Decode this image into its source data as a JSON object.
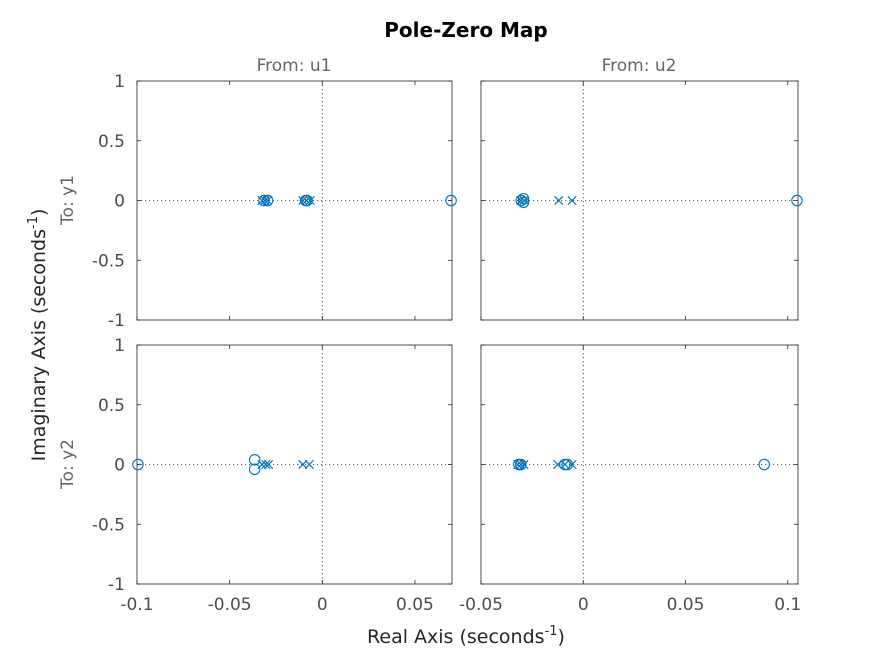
{
  "title": "Pole-Zero Map",
  "xlabel_main": "Real Axis (seconds",
  "xlabel_sup": "-1",
  "xlabel_close": ")",
  "ylabel_main": "Imaginary Axis (seconds",
  "ylabel_sup": "-1",
  "ylabel_close": ")",
  "column_labels": [
    "From: u1",
    "From: u2"
  ],
  "row_labels": [
    "To: y1",
    "To: y2"
  ],
  "colors": {
    "marker": "#0072bd",
    "axes": "#262626"
  },
  "chart_data": {
    "type": "scatter",
    "ylim": [
      -1,
      1
    ],
    "yticks": [
      1,
      0.5,
      0,
      -0.5,
      -1
    ],
    "ytick_labels": [
      "1",
      "0.5",
      "0",
      "-0.5",
      "-1"
    ],
    "columns": [
      {
        "xlim": [
          -0.1,
          0.07
        ],
        "xticks": [
          -0.1,
          -0.05,
          0,
          0.05
        ],
        "xtick_labels": [
          "-0.1",
          "-0.05",
          "0",
          "0.05"
        ]
      },
      {
        "xlim": [
          -0.05,
          0.105
        ],
        "xticks": [
          -0.05,
          0,
          0.05,
          0.1
        ],
        "xtick_labels": [
          "-0.05",
          "0",
          "0.05",
          "0.1"
        ]
      }
    ],
    "grid": false,
    "zero_lines": true,
    "panels": [
      {
        "row": 0,
        "col": 0,
        "poles": [
          [
            -0.0325,
            0
          ],
          [
            -0.031,
            0
          ],
          [
            -0.0295,
            0
          ],
          [
            -0.0105,
            0
          ],
          [
            -0.0085,
            0
          ],
          [
            -0.0065,
            0
          ]
        ],
        "zeros": [
          [
            -0.0315,
            0
          ],
          [
            -0.0295,
            0
          ],
          [
            -0.009,
            0
          ],
          [
            -0.0082,
            0
          ],
          [
            0.0695,
            0
          ]
        ]
      },
      {
        "row": 0,
        "col": 1,
        "poles": [
          [
            -0.0305,
            0
          ],
          [
            -0.029,
            0
          ],
          [
            -0.012,
            0
          ],
          [
            -0.0055,
            0
          ]
        ],
        "zeros": [
          [
            -0.0303,
            0
          ],
          [
            -0.0292,
            0.015
          ],
          [
            -0.0292,
            -0.015
          ],
          [
            0.1045,
            0
          ]
        ]
      },
      {
        "row": 1,
        "col": 0,
        "poles": [
          [
            -0.0325,
            0
          ],
          [
            -0.0305,
            0
          ],
          [
            -0.029,
            0
          ],
          [
            -0.0105,
            0
          ],
          [
            -0.007,
            0
          ]
        ],
        "zeros": [
          [
            -0.0995,
            0
          ],
          [
            -0.0365,
            0.04
          ],
          [
            -0.0365,
            -0.04
          ]
        ]
      },
      {
        "row": 1,
        "col": 1,
        "poles": [
          [
            -0.032,
            0
          ],
          [
            -0.0305,
            0
          ],
          [
            -0.029,
            0
          ],
          [
            -0.0125,
            0
          ],
          [
            -0.009,
            0
          ],
          [
            -0.0055,
            0
          ]
        ],
        "zeros": [
          [
            -0.0315,
            0
          ],
          [
            -0.0305,
            0
          ],
          [
            -0.009,
            0
          ],
          [
            -0.0078,
            0
          ],
          [
            0.0885,
            0
          ]
        ]
      }
    ]
  }
}
